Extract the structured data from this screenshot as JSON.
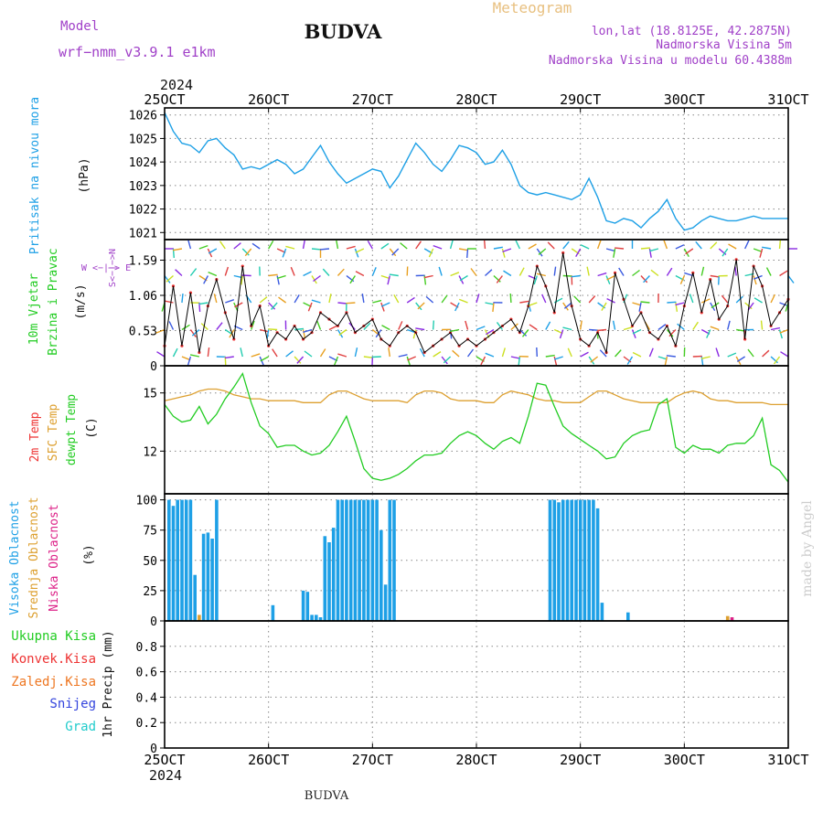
{
  "header": {
    "model_label": "Model",
    "model_name": "wrf−nmm_v3.9.1  e1km",
    "title": "BUDVA",
    "app_title": "Meteogram",
    "lonlat": "lon,lat (18.8125E, 42.2875N)",
    "altitude": "Nadmorska Visina 5m",
    "model_altitude": "Nadmorska Visina u modelu 60.4388m",
    "year": "2024",
    "footer_station": "BUDVA",
    "credit": "made by Angel"
  },
  "colors": {
    "pressure": "#1ea0e6",
    "wind_label": "#22cc22",
    "temp2m": "#ee3333",
    "sfc_temp": "#dda030",
    "dewpt": "#22cc22",
    "cloud_high": "#1ea0e6",
    "cloud_mid": "#dda030",
    "cloud_low": "#dd2288",
    "precip_total": "#22cc22",
    "precip_conv": "#ee3333",
    "precip_frz": "#ee7722",
    "snow": "#3344dd",
    "graupel": "#22cccc",
    "header_purple": "#a040c8"
  },
  "chart_data": {
    "type": "meteogram",
    "x_ticks": [
      "25OCT",
      "26OCT",
      "27OCT",
      "28OCT",
      "29OCT",
      "30OCT",
      "31OCT"
    ],
    "x_range": [
      0,
      144
    ],
    "panels": [
      {
        "id": "pressure",
        "labels": [
          "Pritisak na nivou mora"
        ],
        "unit": "(hPa)",
        "ylim": [
          1020.7,
          1026.3
        ],
        "yticks": [
          "1021",
          "1022",
          "1023",
          "1024",
          "1025",
          "1026"
        ],
        "series": [
          {
            "name": "Pritisak na nivou mora",
            "x": [
              0,
              2,
              4,
              6,
              8,
              10,
              12,
              14,
              16,
              18,
              20,
              22,
              24,
              26,
              28,
              30,
              32,
              34,
              36,
              38,
              40,
              42,
              44,
              46,
              48,
              50,
              52,
              54,
              56,
              58,
              60,
              62,
              64,
              66,
              68,
              70,
              72,
              74,
              76,
              78,
              80,
              82,
              84,
              86,
              88,
              90,
              92,
              94,
              96,
              98,
              100,
              102,
              104,
              106,
              108,
              110,
              112,
              114,
              116,
              118,
              120,
              122,
              124,
              126,
              128,
              130,
              132,
              134,
              136,
              138,
              140,
              142,
              144
            ],
            "y": [
              1026.1,
              1025.3,
              1024.8,
              1024.7,
              1024.4,
              1024.9,
              1025.0,
              1024.6,
              1024.3,
              1023.7,
              1023.8,
              1023.7,
              1023.9,
              1024.1,
              1023.9,
              1023.5,
              1023.7,
              1024.2,
              1024.7,
              1024.0,
              1023.5,
              1023.1,
              1023.3,
              1023.5,
              1023.7,
              1023.6,
              1022.9,
              1023.4,
              1024.1,
              1024.8,
              1024.4,
              1023.9,
              1023.6,
              1024.1,
              1024.7,
              1024.6,
              1024.4,
              1023.9,
              1024.0,
              1024.5,
              1023.9,
              1023.0,
              1022.7,
              1022.6,
              1022.7,
              1022.6,
              1022.5,
              1022.4,
              1022.6,
              1023.3,
              1022.5,
              1021.5,
              1021.4,
              1021.6,
              1021.5,
              1021.2,
              1021.6,
              1021.9,
              1022.4,
              1021.6,
              1021.1,
              1021.2,
              1021.5,
              1021.7,
              1021.6,
              1021.5,
              1021.5,
              1021.6,
              1021.7,
              1021.6,
              1021.6,
              1021.6,
              1021.6
            ]
          }
        ]
      },
      {
        "id": "wind",
        "labels": [
          "10m Vjetar",
          "Brzina i Pravac"
        ],
        "unit": "(m/s)",
        "compass": "W <−|−> E",
        "compass_ns": "S<−|−>N",
        "ylim": [
          0,
          1.9
        ],
        "yticks": [
          "0",
          "0.53",
          "1.06",
          "1.59"
        ],
        "series": [
          {
            "name": "wind speed",
            "x": [
              0,
              2,
              4,
              6,
              8,
              10,
              12,
              14,
              16,
              18,
              20,
              22,
              24,
              26,
              28,
              30,
              32,
              34,
              36,
              38,
              40,
              42,
              44,
              46,
              48,
              50,
              52,
              54,
              56,
              58,
              60,
              62,
              64,
              66,
              68,
              70,
              72,
              74,
              76,
              78,
              80,
              82,
              84,
              86,
              88,
              90,
              92,
              94,
              96,
              98,
              100,
              102,
              104,
              106,
              108,
              110,
              112,
              114,
              116,
              118,
              120,
              122,
              124,
              126,
              128,
              130,
              132,
              134,
              136,
              138,
              140,
              142,
              144
            ],
            "y": [
              0.3,
              1.2,
              0.3,
              1.1,
              0.2,
              0.9,
              1.3,
              0.8,
              0.4,
              1.5,
              0.6,
              0.9,
              0.3,
              0.5,
              0.4,
              0.6,
              0.4,
              0.5,
              0.8,
              0.7,
              0.6,
              0.8,
              0.5,
              0.6,
              0.7,
              0.4,
              0.3,
              0.5,
              0.6,
              0.5,
              0.2,
              0.3,
              0.4,
              0.5,
              0.3,
              0.4,
              0.3,
              0.4,
              0.5,
              0.6,
              0.7,
              0.5,
              0.9,
              1.5,
              1.2,
              0.8,
              1.7,
              0.9,
              0.4,
              0.3,
              0.5,
              0.2,
              1.4,
              1.0,
              0.6,
              0.8,
              0.5,
              0.4,
              0.6,
              0.3,
              0.9,
              1.4,
              0.8,
              1.3,
              0.7,
              0.9,
              1.6,
              0.4,
              1.5,
              1.2,
              0.6,
              0.8,
              1.0
            ]
          }
        ]
      },
      {
        "id": "temperature",
        "labels": [
          "2m Temp",
          "SFC Temp",
          "dewpt Temp"
        ],
        "unit": "(C)",
        "ylim": [
          9.8,
          16.4
        ],
        "yticks": [
          "12",
          "15"
        ],
        "series": [
          {
            "name": "SFC Temp",
            "x": [
              0,
              2,
              4,
              6,
              8,
              10,
              12,
              14,
              16,
              18,
              20,
              22,
              24,
              26,
              28,
              30,
              32,
              34,
              36,
              38,
              40,
              42,
              44,
              46,
              48,
              50,
              52,
              54,
              56,
              58,
              60,
              62,
              64,
              66,
              68,
              70,
              72,
              74,
              76,
              78,
              80,
              82,
              84,
              86,
              88,
              90,
              92,
              94,
              96,
              98,
              100,
              102,
              104,
              106,
              108,
              110,
              112,
              114,
              116,
              118,
              120,
              122,
              124,
              126,
              128,
              130,
              132,
              134,
              136,
              138,
              140,
              142,
              144
            ],
            "y": [
              14.6,
              14.7,
              14.8,
              14.9,
              15.1,
              15.2,
              15.2,
              15.1,
              14.9,
              14.8,
              14.7,
              14.7,
              14.6,
              14.6,
              14.6,
              14.6,
              14.5,
              14.5,
              14.5,
              14.9,
              15.1,
              15.1,
              14.9,
              14.7,
              14.6,
              14.6,
              14.6,
              14.6,
              14.5,
              14.9,
              15.1,
              15.1,
              15.0,
              14.7,
              14.6,
              14.6,
              14.6,
              14.5,
              14.5,
              14.9,
              15.1,
              15.0,
              14.9,
              14.7,
              14.6,
              14.6,
              14.5,
              14.5,
              14.5,
              14.8,
              15.1,
              15.1,
              14.9,
              14.7,
              14.6,
              14.5,
              14.5,
              14.5,
              14.5,
              14.8,
              15.0,
              15.1,
              15.0,
              14.7,
              14.6,
              14.6,
              14.5,
              14.5,
              14.5,
              14.5,
              14.4,
              14.4,
              14.4
            ]
          },
          {
            "name": "dewpt Temp",
            "x": [
              0,
              2,
              4,
              6,
              8,
              10,
              12,
              14,
              16,
              18,
              20,
              22,
              24,
              26,
              28,
              30,
              32,
              34,
              36,
              38,
              40,
              42,
              44,
              46,
              48,
              50,
              52,
              54,
              56,
              58,
              60,
              62,
              64,
              66,
              68,
              70,
              72,
              74,
              76,
              78,
              80,
              82,
              84,
              86,
              88,
              90,
              92,
              94,
              96,
              98,
              100,
              102,
              104,
              106,
              108,
              110,
              112,
              114,
              116,
              118,
              120,
              122,
              124,
              126,
              128,
              130,
              132,
              134,
              136,
              138,
              140,
              142,
              144
            ],
            "y": [
              14.4,
              13.8,
              13.5,
              13.6,
              14.3,
              13.4,
              13.9,
              14.7,
              15.3,
              16.0,
              14.5,
              13.3,
              12.9,
              12.2,
              12.3,
              12.3,
              12.0,
              11.8,
              11.9,
              12.3,
              13.0,
              13.8,
              12.5,
              11.1,
              10.6,
              10.5,
              10.6,
              10.8,
              11.1,
              11.5,
              11.8,
              11.8,
              11.9,
              12.4,
              12.8,
              13.0,
              12.8,
              12.4,
              12.1,
              12.5,
              12.7,
              12.4,
              13.8,
              15.5,
              15.4,
              14.3,
              13.3,
              12.9,
              12.6,
              12.3,
              12.0,
              11.6,
              11.7,
              12.4,
              12.8,
              13.0,
              13.1,
              14.4,
              14.7,
              12.2,
              11.9,
              12.3,
              12.1,
              12.1,
              11.9,
              12.3,
              12.4,
              12.4,
              12.8,
              13.7,
              11.3,
              11.0,
              10.4
            ]
          }
        ]
      },
      {
        "id": "clouds",
        "labels": [
          "Visoka Oblacnost",
          "Srednja Oblacnost",
          "Niska Oblacnost"
        ],
        "unit": "(%)",
        "ylim": [
          0,
          105
        ],
        "yticks": [
          "0",
          "25",
          "50",
          "75",
          "100"
        ],
        "series": [
          {
            "name": "Visoka Oblacnost",
            "x": [
              1,
              2,
              3,
              4,
              5,
              6,
              7,
              9,
              10,
              11,
              12,
              13,
              25,
              32,
              33,
              34,
              35,
              36,
              37,
              38,
              39,
              40,
              41,
              42,
              43,
              44,
              45,
              46,
              47,
              48,
              49,
              50,
              51,
              52,
              53,
              89,
              90,
              91,
              92,
              93,
              94,
              95,
              96,
              97,
              98,
              99,
              100,
              101,
              107
            ],
            "y": [
              100,
              95,
              100,
              100,
              100,
              100,
              38,
              72,
              73,
              68,
              100,
              0,
              13,
              25,
              24,
              5,
              5,
              3,
              70,
              65,
              77,
              100,
              100,
              100,
              100,
              100,
              100,
              100,
              100,
              100,
              100,
              75,
              30,
              100,
              100,
              100,
              100,
              98,
              100,
              100,
              100,
              100,
              100,
              100,
              100,
              100,
              93,
              15,
              7
            ]
          },
          {
            "name": "Srednja Oblacnost",
            "x": [
              8,
              130
            ],
            "y": [
              5,
              4
            ]
          },
          {
            "name": "Niska Oblacnost",
            "x": [
              131
            ],
            "y": [
              3
            ]
          }
        ]
      },
      {
        "id": "precip",
        "labels": [
          "Ukupna Kisa",
          "Konvek.Kisa",
          "Zaledj.Kisa",
          "Snijeg",
          "Grad"
        ],
        "unit": "1hr Precip (mm)",
        "ylim": [
          0,
          1.0
        ],
        "yticks": [
          "0",
          "0.2",
          "0.4",
          "0.6",
          "0.8"
        ],
        "series": []
      }
    ]
  }
}
